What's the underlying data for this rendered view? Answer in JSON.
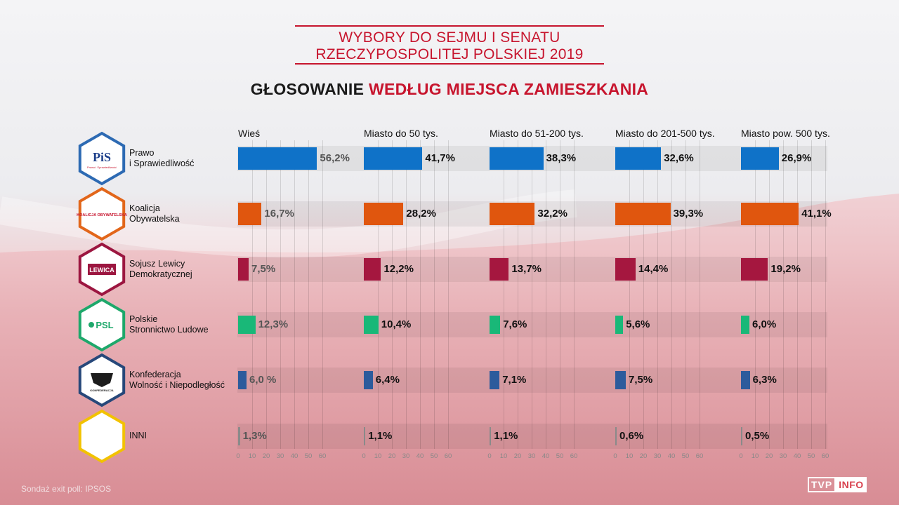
{
  "header": {
    "title_line1": "WYBORY DO SEJMU I SENATU",
    "title_line2": "RZECZYPOSPOLITEJ POLSKIEJ 2019",
    "subtitle_part1": "GŁOSOWANIE",
    "subtitle_part2": "WEDŁUG MIEJSCA ZAMIESZKANIA"
  },
  "logos": [
    {
      "text": "PiS",
      "sub": "Prawo i Sprawiedliwość",
      "border": "#2d6ab3",
      "icon": "pis-logo-icon"
    },
    {
      "text": "KOALICJA OBYWATELSKA",
      "border": "#e2661a",
      "icon": "ko-logo-icon"
    },
    {
      "text": "LEWICA",
      "border": "#9c1640",
      "icon": "lewica-logo-icon"
    },
    {
      "text": "PSL",
      "border": "#1ea86b",
      "icon": "psl-logo-icon"
    },
    {
      "text": "KONFEDERACJA",
      "border": "#27487a",
      "icon": "konfederacja-logo-icon"
    },
    {
      "text": "",
      "border": "#f2c200",
      "icon": "empty-logo-icon"
    }
  ],
  "chart_data": {
    "type": "bar",
    "title": "GŁOSOWANIE WEDŁUG MIEJSCA ZAMIESZKANIA",
    "categories": [
      "Wieś",
      "Miasto do 50 tys.",
      "Miasto do 51-200 tys.",
      "Miasto do 201-500 tys.",
      "Miasto pow. 500 tys."
    ],
    "parties": [
      {
        "name_line1": "Prawo",
        "name_line2": "i Sprawiedliwość",
        "color": "#0f72c8",
        "values": [
          56.2,
          41.7,
          38.3,
          32.6,
          26.9
        ],
        "labels": [
          "56,2%",
          "41,7%",
          "38,3%",
          "32,6%",
          "26,9%"
        ]
      },
      {
        "name_line1": "Koalicja",
        "name_line2": "Obywatelska",
        "color": "#e0560e",
        "values": [
          16.7,
          28.2,
          32.2,
          39.3,
          41.1
        ],
        "labels": [
          "16,7%",
          "28,2%",
          "32,2%",
          "39,3%",
          "41,1%"
        ]
      },
      {
        "name_line1": "Sojusz Lewicy",
        "name_line2": "Demokratycznej",
        "color": "#a5173f",
        "values": [
          7.5,
          12.2,
          13.7,
          14.4,
          19.2
        ],
        "labels": [
          "7,5%",
          "12,2%",
          "13,7%",
          "14,4%",
          "19,2%"
        ]
      },
      {
        "name_line1": "Polskie",
        "name_line2": "Stronnictwo Ludowe",
        "color": "#19b878",
        "values": [
          12.3,
          10.4,
          7.6,
          5.6,
          6.0
        ],
        "labels": [
          "12,3%",
          "10,4%",
          "7,6%",
          "5,6%",
          "6,0%"
        ]
      },
      {
        "name_line1": "Konfederacja",
        "name_line2": "Wolność i Niepodległość",
        "color": "#2c5b9c",
        "values": [
          6.0,
          6.4,
          7.1,
          7.5,
          6.3
        ],
        "labels": [
          "6,0 %",
          "6,4%",
          "7,1%",
          "7,5%",
          "6,3%"
        ]
      },
      {
        "name_line1": "INNI",
        "name_line2": "",
        "color": "#8a8a8a",
        "values": [
          1.3,
          1.1,
          1.1,
          0.6,
          0.5
        ],
        "labels": [
          "1,3%",
          "1,1%",
          "1,1%",
          "0,6%",
          "0,5%"
        ]
      }
    ],
    "xlim": [
      0,
      60
    ],
    "ticks": [
      "0",
      "10",
      "20",
      "30",
      "40",
      "50",
      "60"
    ],
    "grid": true
  },
  "footer": {
    "source": "Sondaż exit poll: IPSOS",
    "brand_tvp": "TVP",
    "brand_info": "INFO"
  }
}
